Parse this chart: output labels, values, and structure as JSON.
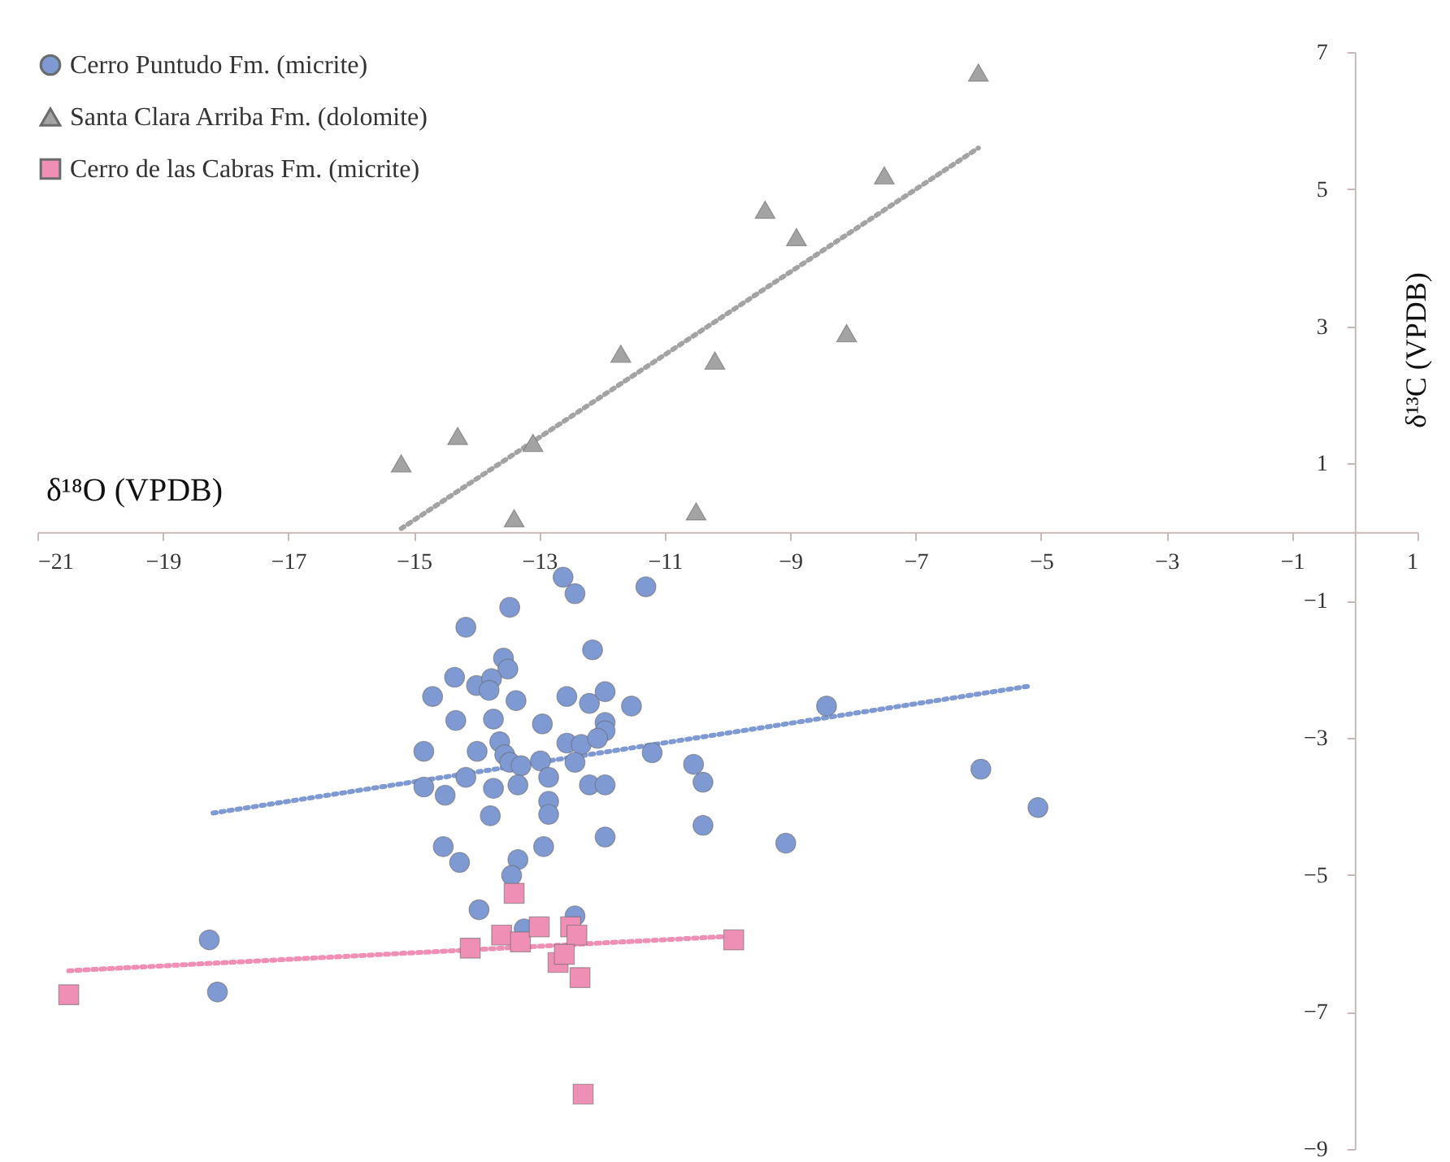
{
  "chart_data": {
    "type": "scatter",
    "xlabel": "δ¹⁸O (VPDB)",
    "ylabel": "δ¹³C (VPDB)",
    "xlim": [
      -21,
      1
    ],
    "xticks": [
      -21,
      -19,
      -17,
      -15,
      -13,
      -11,
      -9,
      -7,
      -5,
      -3,
      -1,
      1
    ],
    "ylim": [
      -9,
      7
    ],
    "yticks": [
      7,
      5,
      3,
      1,
      -1,
      -3,
      -5,
      -7,
      -9
    ],
    "legend": "top left",
    "grid": false,
    "line_style": "dotted",
    "series": [
      {
        "name": "Cerro Puntudo Fm. (micrite)",
        "color": "#7f99d3",
        "marker": "circle",
        "x": [
          -12.62,
          -12.43,
          -11.3,
          -13.47,
          -14.17,
          -12.15,
          -13.57,
          -13.5,
          -14.35,
          -14.0,
          -13.76,
          -13.8,
          -14.7,
          -13.37,
          -12.56,
          -12.2,
          -11.95,
          -11.53,
          -14.33,
          -13.73,
          -12.95,
          -11.95,
          -11.95,
          -14.84,
          -13.99,
          -13.63,
          -12.56,
          -12.33,
          -12.07,
          -11.2,
          -13.55,
          -13.47,
          -13.29,
          -12.98,
          -12.43,
          -12.85,
          -14.84,
          -14.5,
          -14.17,
          -13.73,
          -13.34,
          -12.2,
          -11.95,
          -12.85,
          -12.85,
          -13.78,
          -11.95,
          -14.53,
          -14.27,
          -12.93,
          -13.34,
          -13.44,
          -13.96,
          -12.43,
          -13.24,
          -10.54,
          -10.39,
          -10.39,
          -8.42,
          -9.07,
          -5.96,
          -5.05,
          -18.26,
          -18.13
        ],
        "values": [
          -0.66,
          -0.9,
          -0.8,
          -1.1,
          -1.39,
          -1.72,
          -1.84,
          -2.0,
          -2.12,
          -2.24,
          -2.14,
          -2.31,
          -2.4,
          -2.46,
          -2.4,
          -2.5,
          -2.33,
          -2.54,
          -2.75,
          -2.73,
          -2.8,
          -2.78,
          -2.9,
          -3.2,
          -3.2,
          -3.06,
          -3.08,
          -3.1,
          -3.01,
          -3.22,
          -3.25,
          -3.36,
          -3.41,
          -3.34,
          -3.36,
          -3.58,
          -3.72,
          -3.84,
          -3.58,
          -3.74,
          -3.69,
          -3.69,
          -3.69,
          -3.93,
          -4.12,
          -4.14,
          -4.45,
          -4.59,
          -4.82,
          -4.59,
          -4.78,
          -5.01,
          -5.51,
          -5.6,
          -5.79,
          -3.39,
          -3.65,
          -4.28,
          -2.54,
          -4.54,
          -3.46,
          -4.02,
          -5.95,
          -6.71
        ]
      },
      {
        "name": "Santa Clara Arriba Fm. (dolomite)",
        "color": "#a3a3a3",
        "marker": "triangle",
        "x": [
          -15.2,
          -14.3,
          -13.1,
          -13.4,
          -11.7,
          -10.5,
          -10.2,
          -9.4,
          -8.9,
          -7.5,
          -8.1,
          -6.0
        ],
        "values": [
          1.0,
          1.4,
          1.3,
          0.2,
          2.6,
          0.3,
          2.5,
          4.7,
          4.3,
          5.2,
          2.9,
          6.7
        ]
      },
      {
        "name": "Cerro de las Cabras Fm. (micrite)",
        "color": "#ef8fb6",
        "marker": "square",
        "x": [
          -20.5,
          -13.4,
          -14.1,
          -13.6,
          -13.3,
          -13.0,
          -12.5,
          -12.4,
          -12.7,
          -12.6,
          -12.35,
          -12.3,
          -9.9
        ],
        "values": [
          -6.75,
          -5.27,
          -6.07,
          -5.88,
          -5.98,
          -5.76,
          -5.76,
          -5.88,
          -6.28,
          -6.16,
          -6.5,
          -8.2,
          -5.95
        ]
      },
      {
        "type": "line",
        "color": "#7f99d3",
        "x": [
          -18.2,
          -5.2
        ],
        "values": [
          -4.1,
          -2.25
        ]
      },
      {
        "type": "line",
        "color": "#a3a3a3",
        "x": [
          -15.2,
          -6.0
        ],
        "values": [
          0.05,
          5.6
        ]
      },
      {
        "type": "line",
        "color": "#ef8fb6",
        "x": [
          -20.5,
          -10.0
        ],
        "values": [
          -6.4,
          -5.9
        ]
      }
    ]
  }
}
